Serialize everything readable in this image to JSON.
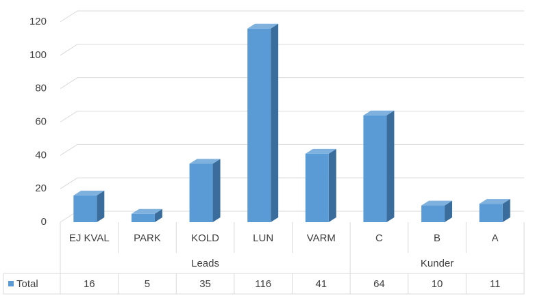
{
  "chart_data": {
    "type": "bar3d",
    "groups": [
      {
        "name": "Leads",
        "categories": [
          "EJ KVAL",
          "PARK",
          "KOLD",
          "LUN",
          "VARM"
        ]
      },
      {
        "name": "Kunder",
        "categories": [
          "C",
          "B",
          "A"
        ]
      }
    ],
    "series": [
      {
        "name": "Total",
        "color": "#5b9bd5",
        "values": [
          16,
          5,
          35,
          116,
          41,
          64,
          10,
          11
        ]
      }
    ],
    "ylim": [
      0,
      120
    ],
    "yticks": [
      0,
      20,
      40,
      60,
      80,
      100,
      120
    ],
    "grid": true
  }
}
